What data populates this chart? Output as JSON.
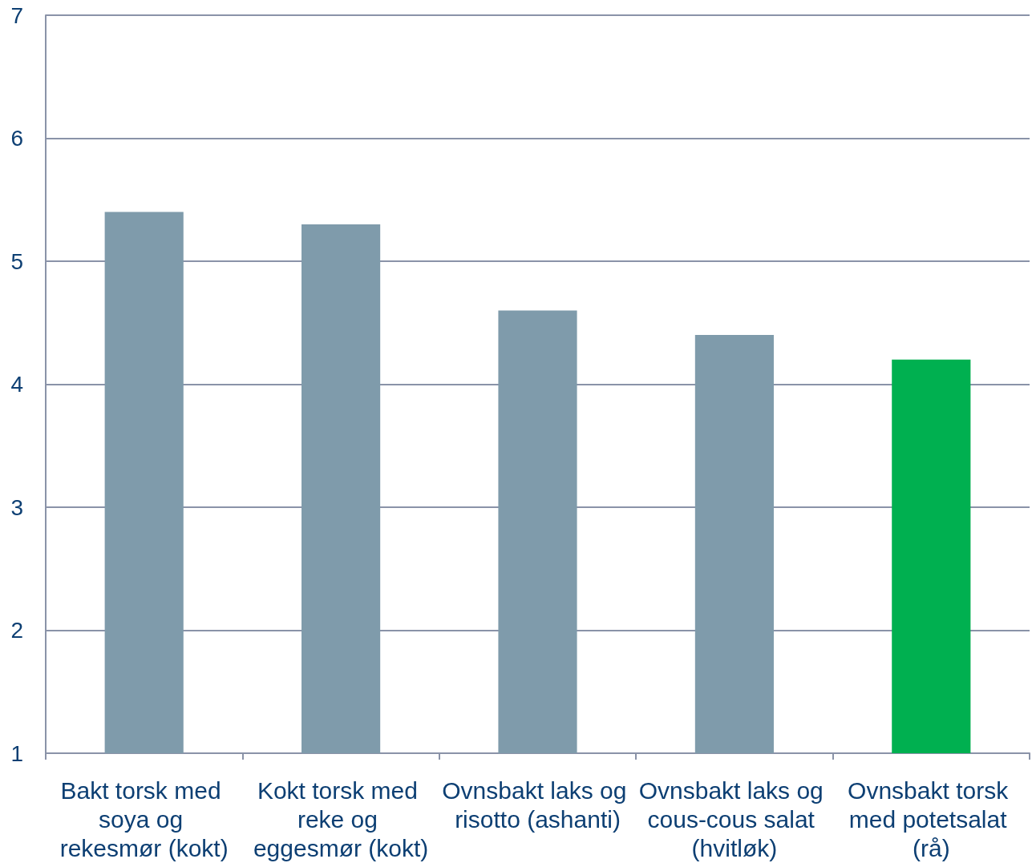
{
  "chart_data": {
    "type": "bar",
    "categories": [
      "Bakt torsk med soya og rekesmør (kokt)",
      "Kokt torsk med reke og eggesmør (kokt)",
      "Ovnsbakt laks og risotto (ashanti)",
      "Ovnsbakt laks og cous-cous salat (hvitløk)",
      "Ovnsbakt torsk med potetsalat (rå)"
    ],
    "values": [
      5.4,
      5.3,
      4.6,
      4.4,
      4.2
    ],
    "colors": [
      "#7f9bab",
      "#7f9bab",
      "#7f9bab",
      "#7f9bab",
      "#00b050"
    ],
    "ylim": [
      1,
      7
    ],
    "yticks": [
      1,
      2,
      3,
      4,
      5,
      6,
      7
    ],
    "grid": "y"
  }
}
